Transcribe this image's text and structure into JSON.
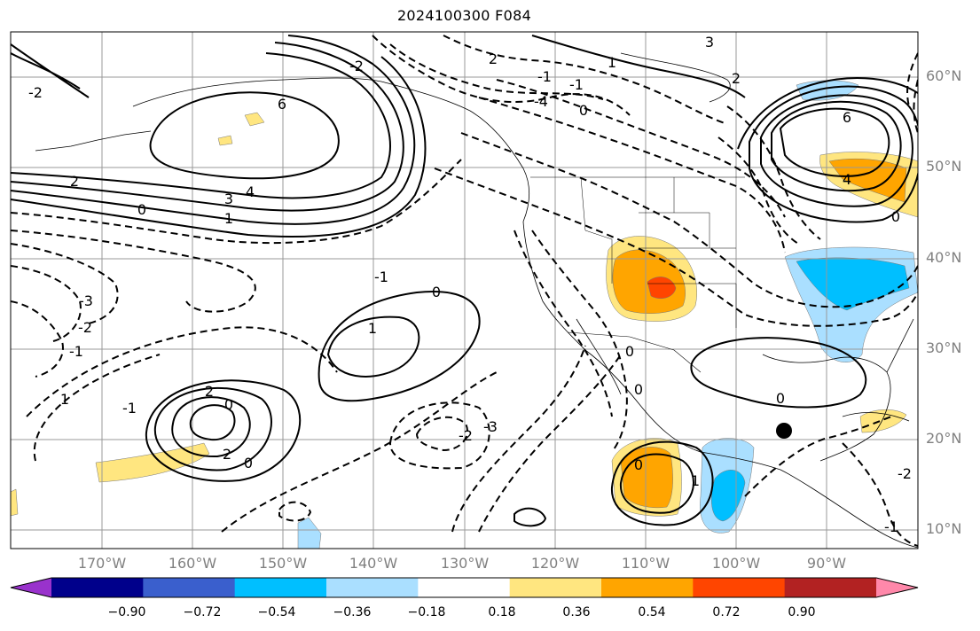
{
  "title": "2024100300 F084",
  "colorbar": {
    "colors": [
      "#9932cc",
      "#00008b",
      "#3a5fcd",
      "#00bfff",
      "#aadfff",
      "#ffffff",
      "#ffe680",
      "#ffa500",
      "#ff4500",
      "#b22222",
      "#ff88aa"
    ],
    "tick_labels": [
      "−0.90",
      "−0.72",
      "−0.54",
      "−0.36",
      "−0.18",
      "0.18",
      "0.36",
      "0.54",
      "0.72",
      "0.90"
    ]
  },
  "latitude_labels": [
    "60°N",
    "50°N",
    "40°N",
    "30°N",
    "20°N",
    "10°N"
  ],
  "longitude_labels": [
    "170°W",
    "160°W",
    "150°W",
    "140°W",
    "130°W",
    "120°W",
    "110°W",
    "100°W",
    "90°W"
  ],
  "contour_labels": [
    "6",
    "-2",
    "2",
    "3",
    "4",
    "1",
    "0",
    "-3",
    "-2",
    "-1",
    "1",
    "2",
    "0",
    "-1",
    "0",
    "2",
    "-2",
    "-3",
    "-4",
    "-1",
    "0",
    "1",
    "2",
    "3",
    "6",
    "4",
    "0",
    "0",
    "-2",
    "-1",
    "0",
    "1",
    "0",
    "-1",
    "-2",
    "0",
    "-1",
    "0",
    "2",
    "1"
  ],
  "marker": "storm-center"
}
